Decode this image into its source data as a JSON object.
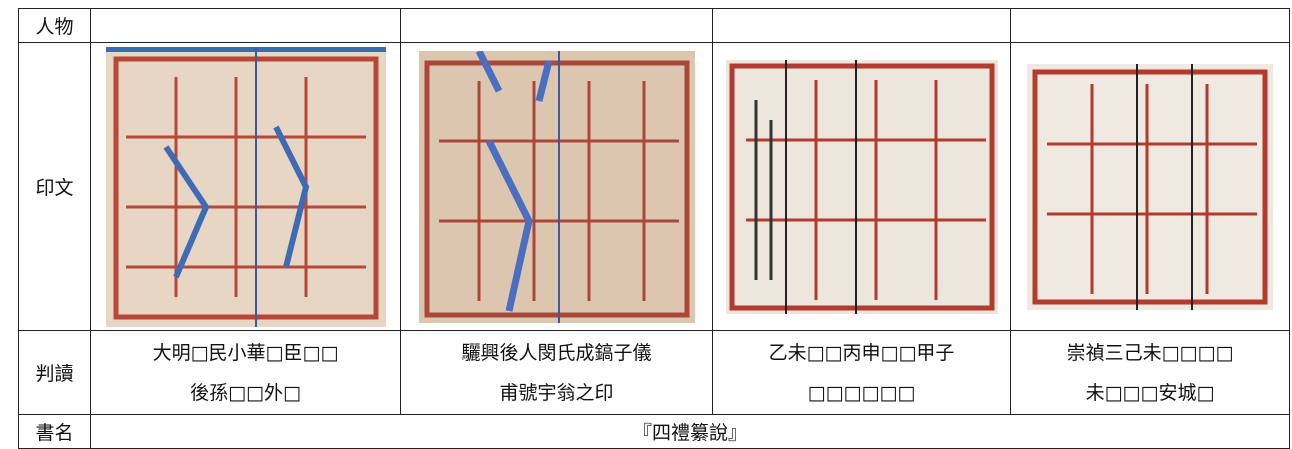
{
  "header_row": {
    "label": "人物"
  },
  "seal_row": {
    "label": "印文"
  },
  "reading_row": {
    "label": "判讀",
    "cells": [
      [
        "大明□民小華□臣□□",
        "後孫□□外□"
      ],
      [
        "驪興後人閔氏成鎬子儀",
        "甫號宇翁之印"
      ],
      [
        "乙未□□丙申□□甲子",
        "□□□□□□"
      ],
      [
        "崇禎三己未□□□□",
        "未□□□安城□"
      ]
    ]
  },
  "book_row": {
    "label": "書名",
    "title": "『四禮纂說』"
  }
}
